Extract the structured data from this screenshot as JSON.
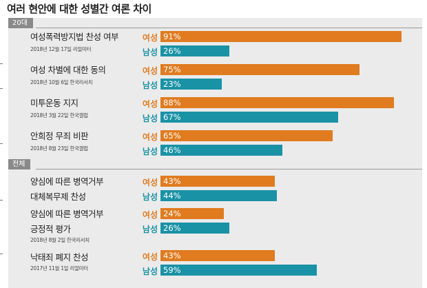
{
  "title": "여러 현안에 대한 성별간 여론 차이",
  "colors": {
    "female": "#e07b1f",
    "male": "#1a92a6",
    "section": "#8a8a8a",
    "panel": "#ebebeb"
  },
  "chart_data": {
    "type": "bar",
    "orientation": "horizontal",
    "value_unit": "%",
    "xlim": [
      0,
      100
    ],
    "sections": [
      {
        "label": "20대",
        "items": [
          {
            "lines": [
              "여성폭력방지법 찬성 여부"
            ],
            "source": "2018년 12월 17일 리얼미터",
            "series": [
              {
                "name": "여성",
                "value": 91,
                "text": "91%"
              },
              {
                "name": "남성",
                "value": 26,
                "text": "26%"
              }
            ]
          },
          {
            "lines": [
              "여성 차별에 대한 동의"
            ],
            "source": "2018년 10월 6일 한국리서치",
            "series": [
              {
                "name": "여성",
                "value": 75,
                "text": "75%"
              },
              {
                "name": "남성",
                "value": 23,
                "text": "23%"
              }
            ]
          },
          {
            "lines": [
              "미투운동 지지"
            ],
            "source": "2018년 3월 22일 한국갤럽",
            "series": [
              {
                "name": "여성",
                "value": 88,
                "text": "88%"
              },
              {
                "name": "남성",
                "value": 67,
                "text": "67%"
              }
            ]
          },
          {
            "lines": [
              "안희정 무죄 비판"
            ],
            "source": "2018년 8월 23일 한국갤럽",
            "series": [
              {
                "name": "여성",
                "value": 65,
                "text": "65%"
              },
              {
                "name": "남성",
                "value": 46,
                "text": "46%"
              }
            ]
          }
        ]
      },
      {
        "label": "전체",
        "items": [
          {
            "lines": [
              "양심에 따른 병역거부",
              "대체복무제 찬성"
            ],
            "source": "",
            "series": [
              {
                "name": "여성",
                "value": 43,
                "text": "43%"
              },
              {
                "name": "남성",
                "value": 44,
                "text": "44%"
              }
            ]
          },
          {
            "lines": [
              "양심에 따른 병역거부",
              "긍정적 평가"
            ],
            "source": "2018년 8월 2일 한국리서치",
            "series": [
              {
                "name": "여성",
                "value": 24,
                "text": "24%"
              },
              {
                "name": "남성",
                "value": 26,
                "text": "26%"
              }
            ]
          },
          {
            "lines": [
              "낙태죄 폐지 찬성"
            ],
            "source": "2017년 11월 1일 리얼미터",
            "series": [
              {
                "name": "여성",
                "value": 43,
                "text": "43%"
              },
              {
                "name": "남성",
                "value": 59,
                "text": "59%"
              }
            ]
          }
        ]
      }
    ]
  }
}
